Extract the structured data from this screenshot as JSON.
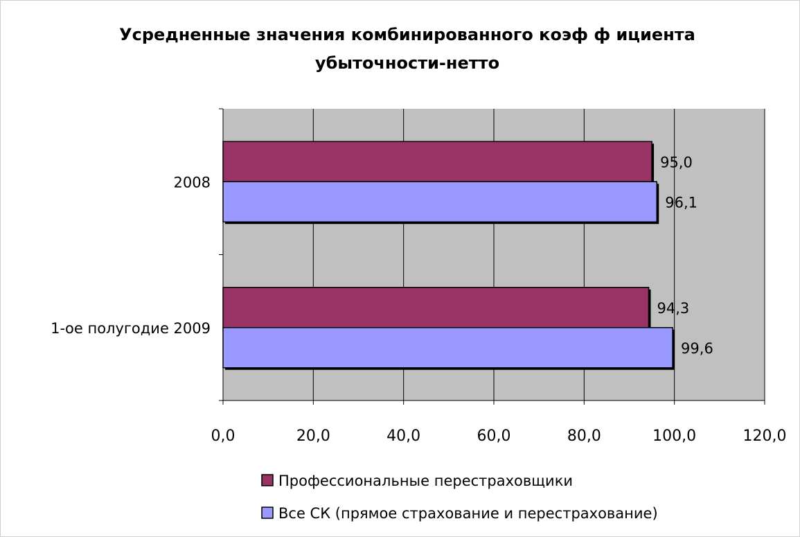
{
  "chart_data": {
    "type": "bar",
    "orientation": "horizontal",
    "title_lines": [
      "Усредненные значения комбинированного коэф ф ициента",
      "убыточности-нетто"
    ],
    "categories": [
      "2008",
      "1-ое полугодие 2009"
    ],
    "series": [
      {
        "name": "Профессиональные перестраховщики",
        "values": [
          95.0,
          94.3
        ],
        "labels": [
          "95,0",
          "94,3"
        ],
        "color": "#993366"
      },
      {
        "name": "Все СК (прямое страхование и перестрахование)",
        "values": [
          96.1,
          99.6
        ],
        "labels": [
          "96,1",
          "99,6"
        ],
        "color": "#9999FF"
      }
    ],
    "xlim": [
      0,
      120
    ],
    "x_ticks": [
      0,
      20,
      40,
      60,
      80,
      100,
      120
    ],
    "x_tick_labels": [
      "0,0",
      "20,0",
      "40,0",
      "60,0",
      "80,0",
      "100,0",
      "120,0"
    ],
    "grid": true,
    "plot_background": "#C0C0C0",
    "legend_position": "bottom"
  }
}
